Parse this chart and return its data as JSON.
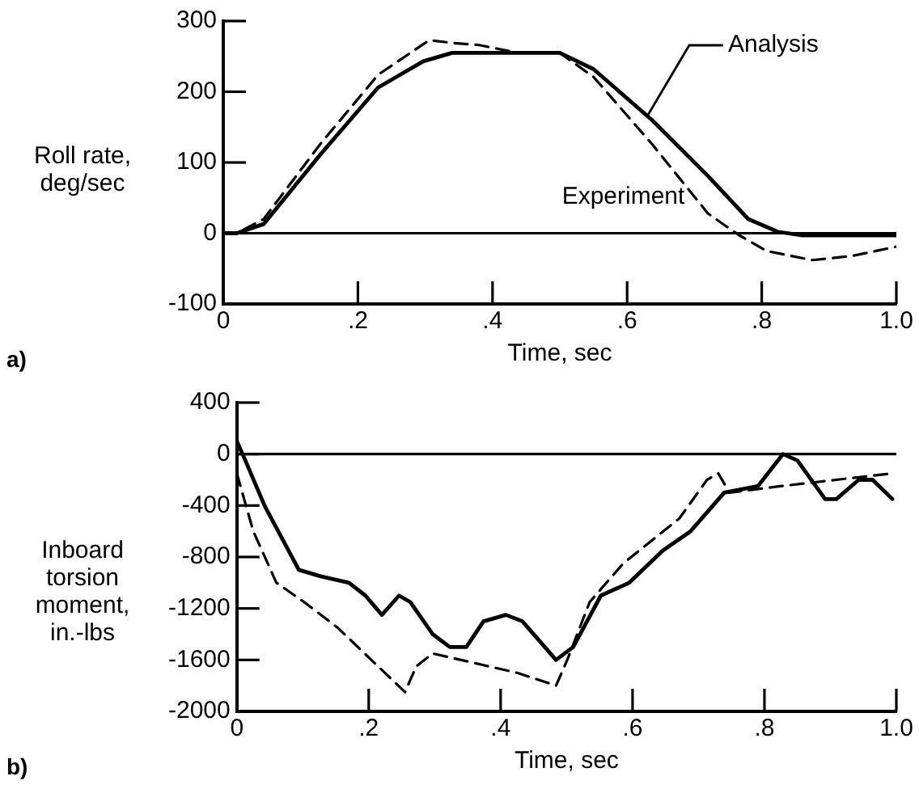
{
  "chart_data": [
    {
      "type": "line",
      "xlabel": "Time, sec",
      "ylabel": "Roll rate, deg/sec",
      "annotations": [
        "a)"
      ],
      "xlim": [
        0,
        1
      ],
      "xticks": [
        0,
        {
          "value": 0.2,
          "label": ".2"
        },
        {
          "value": 0.4,
          "label": ".4"
        },
        {
          "value": 0.6,
          "label": ".6"
        },
        {
          "value": 0.8,
          "label": ".8"
        },
        {
          "value": 1,
          "label": "1.0"
        }
      ],
      "ylim": [
        -100,
        300
      ],
      "yticks": [
        -100,
        0,
        100,
        200,
        300
      ],
      "ref_lines": [
        {
          "axis": "y",
          "value": 0
        }
      ],
      "marker": "none",
      "series": [
        {
          "name": "Analysis",
          "color": "#000000",
          "line_style": "solid",
          "x": [
            0,
            0.02,
            0.06,
            0.144,
            0.23,
            0.297,
            0.34,
            0.4,
            0.5,
            0.55,
            0.637,
            0.72,
            0.78,
            0.824,
            0.86,
            1.0
          ],
          "values": [
            0,
            0,
            13,
            111,
            206,
            243,
            255,
            255,
            255,
            232,
            160,
            81,
            20,
            2,
            -3,
            -3
          ]
        },
        {
          "name": "Experiment",
          "color": "#000000",
          "line_style": "dashed",
          "x": [
            0,
            0.02,
            0.06,
            0.144,
            0.23,
            0.306,
            0.34,
            0.38,
            0.433,
            0.5,
            0.55,
            0.637,
            0.72,
            0.765,
            0.807,
            0.875,
            0.935,
            1.0
          ],
          "values": [
            0,
            0,
            20,
            126,
            224,
            273,
            269,
            266,
            256,
            255,
            221,
            126,
            28,
            -2,
            -25,
            -38,
            -32,
            -19
          ]
        }
      ]
    },
    {
      "type": "line",
      "xlabel": "Time, sec",
      "ylabel": "Inboard torsion moment, in.-lbs",
      "annotations": [
        "b)"
      ],
      "xlim": [
        0,
        1
      ],
      "xticks": [
        0,
        {
          "value": 0.2,
          "label": ".2"
        },
        {
          "value": 0.4,
          "label": ".4"
        },
        {
          "value": 0.6,
          "label": ".6"
        },
        {
          "value": 0.8,
          "label": ".8"
        },
        {
          "value": 1,
          "label": "1.0"
        }
      ],
      "ylim": [
        -2000,
        400
      ],
      "yticks": [
        -2000,
        -1600,
        -1200,
        -800,
        -400,
        0,
        400
      ],
      "ref_lines": [
        {
          "axis": "y",
          "value": 0
        }
      ],
      "marker": "none",
      "series": [
        {
          "color": "#000000",
          "line_style": "solid",
          "x": [
            0,
            0.013,
            0.042,
            0.068,
            0.094,
            0.127,
            0.17,
            0.195,
            0.22,
            0.246,
            0.263,
            0.297,
            0.323,
            0.348,
            0.374,
            0.408,
            0.433,
            0.467,
            0.484,
            0.51,
            0.552,
            0.595,
            0.646,
            0.688,
            0.739,
            0.79,
            0.828,
            0.85,
            0.892,
            0.909,
            0.943,
            0.964,
            0.994
          ],
          "values": [
            100,
            -50,
            -400,
            -650,
            -900,
            -950,
            -1000,
            -1100,
            -1250,
            -1100,
            -1150,
            -1400,
            -1500,
            -1500,
            -1300,
            -1250,
            -1300,
            -1500,
            -1600,
            -1500,
            -1100,
            -1000,
            -750,
            -600,
            -300,
            -250,
            0,
            -50,
            -350,
            -350,
            -200,
            -200,
            -350
          ]
        },
        {
          "color": "#000000",
          "line_style": "dashed",
          "x": [
            0,
            0.025,
            0.06,
            0.102,
            0.153,
            0.204,
            0.255,
            0.272,
            0.297,
            0.34,
            0.382,
            0.425,
            0.484,
            0.501,
            0.535,
            0.586,
            0.671,
            0.713,
            0.73,
            0.747,
            0.824,
            0.909,
            0.994
          ],
          "values": [
            -150,
            -600,
            -1000,
            -1150,
            -1350,
            -1600,
            -1850,
            -1650,
            -1550,
            -1600,
            -1650,
            -1700,
            -1800,
            -1600,
            -1150,
            -850,
            -500,
            -200,
            -150,
            -300,
            -250,
            -200,
            -150
          ]
        }
      ]
    }
  ]
}
